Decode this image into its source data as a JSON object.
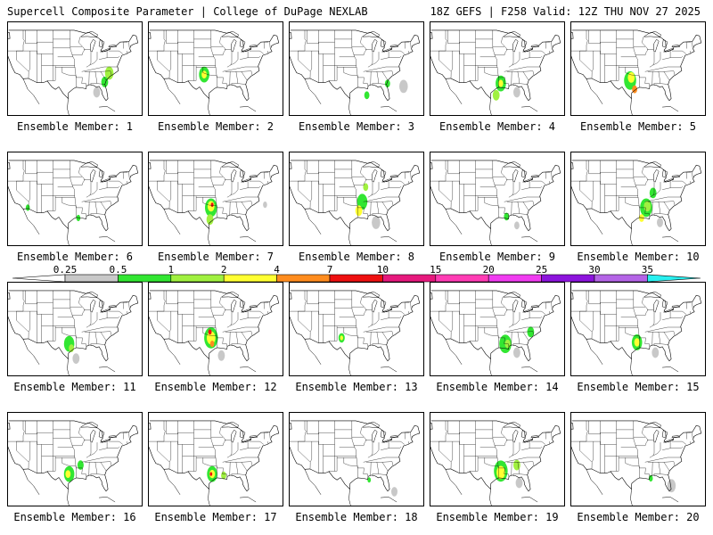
{
  "header": {
    "title": "Supercell Composite Parameter | College of DuPage NEXLAB",
    "run_info": "18Z GEFS | F258 Valid: 12Z THU NOV 27 2025"
  },
  "colorbar": {
    "levels": [
      {
        "label": "0.25",
        "color": "#c8c8c8"
      },
      {
        "label": "0.5",
        "color": "#32e632"
      },
      {
        "label": "1",
        "color": "#a0f040"
      },
      {
        "label": "2",
        "color": "#ffff32"
      },
      {
        "label": "4",
        "color": "#ff8c1e"
      },
      {
        "label": "7",
        "color": "#ee1010"
      },
      {
        "label": "10",
        "color": "#e6197d"
      },
      {
        "label": "15",
        "color": "#ff3cb4"
      },
      {
        "label": "20",
        "color": "#f03cf0"
      },
      {
        "label": "25",
        "color": "#8c14dc"
      },
      {
        "label": "30",
        "color": "#b464e6"
      },
      {
        "label": "35",
        "color": "#28f0f0"
      }
    ],
    "left_arrow_color": "#ffffff",
    "right_arrow_color": "#28f0f0"
  },
  "members": [
    {
      "label": "Ensemble Member: 1",
      "blobs": [
        {
          "lon": -79.5,
          "lat": 34.5,
          "r": 2.5,
          "c": 2
        },
        {
          "lon": -81.5,
          "lat": 31.5,
          "r": 2.0,
          "c": 1
        },
        {
          "lon": -85,
          "lat": 28,
          "r": 2.0,
          "c": 0
        }
      ]
    },
    {
      "label": "Ensemble Member: 2",
      "blobs": [
        {
          "lon": -99.5,
          "lat": 34,
          "r": 3.0,
          "c": 1
        },
        {
          "lon": -99.5,
          "lat": 34,
          "r": 1.5,
          "c": 3
        }
      ]
    },
    {
      "label": "Ensemble Member: 3",
      "blobs": [
        {
          "lon": -81,
          "lat": 31,
          "r": 1.5,
          "c": 1
        },
        {
          "lon": -90,
          "lat": 27,
          "r": 1.5,
          "c": 1
        },
        {
          "lon": -74,
          "lat": 30,
          "r": 2.5,
          "c": 0
        }
      ]
    },
    {
      "label": "Ensemble Member: 4",
      "blobs": [
        {
          "lon": -93,
          "lat": 31,
          "r": 3.0,
          "c": 1
        },
        {
          "lon": -93,
          "lat": 31,
          "r": 1.4,
          "c": 3
        },
        {
          "lon": -95,
          "lat": 27,
          "r": 2.0,
          "c": 2
        },
        {
          "lon": -86,
          "lat": 28,
          "r": 2.0,
          "c": 0
        }
      ]
    },
    {
      "label": "Ensemble Member: 5",
      "blobs": [
        {
          "lon": -98,
          "lat": 32,
          "r": 3.5,
          "c": 1
        },
        {
          "lon": -97.5,
          "lat": 33,
          "r": 2.0,
          "c": 3
        },
        {
          "lon": -96,
          "lat": 29,
          "r": 1.5,
          "c": 4
        }
      ]
    },
    {
      "label": "Ensemble Member: 6",
      "blobs": [
        {
          "lon": -115,
          "lat": 33,
          "r": 1.2,
          "c": 1
        },
        {
          "lon": -93,
          "lat": 29.5,
          "r": 1.2,
          "c": 1
        }
      ]
    },
    {
      "label": "Ensemble Member: 7",
      "blobs": [
        {
          "lon": -96.5,
          "lat": 33,
          "r": 3.5,
          "c": 1
        },
        {
          "lon": -96.5,
          "lat": 33.5,
          "r": 2.0,
          "c": 3
        },
        {
          "lon": -96,
          "lat": 34,
          "r": 0.8,
          "c": 5
        },
        {
          "lon": -97,
          "lat": 29,
          "r": 2.0,
          "c": 2
        },
        {
          "lon": -73,
          "lat": 34,
          "r": 1.2,
          "c": 0
        }
      ]
    },
    {
      "label": "Ensemble Member: 8",
      "blobs": [
        {
          "lon": -92,
          "lat": 35,
          "r": 3.0,
          "c": 1
        },
        {
          "lon": -93.5,
          "lat": 32,
          "r": 2.0,
          "c": 3
        },
        {
          "lon": -90.5,
          "lat": 40,
          "r": 1.5,
          "c": 2
        },
        {
          "lon": -86,
          "lat": 28,
          "r": 2.5,
          "c": 0
        }
      ]
    },
    {
      "label": "Ensemble Member: 9",
      "blobs": [
        {
          "lon": -90.5,
          "lat": 30,
          "r": 1.5,
          "c": 1
        },
        {
          "lon": -86,
          "lat": 27,
          "r": 1.5,
          "c": 0
        }
      ]
    },
    {
      "label": "Ensemble Member: 10",
      "blobs": [
        {
          "lon": -91,
          "lat": 33,
          "r": 3.5,
          "c": 1
        },
        {
          "lon": -90.5,
          "lat": 33.5,
          "r": 2.0,
          "c": 2
        },
        {
          "lon": -93,
          "lat": 29.5,
          "r": 1.5,
          "c": 3
        },
        {
          "lon": -88,
          "lat": 38,
          "r": 2.0,
          "c": 1
        },
        {
          "lon": -85,
          "lat": 28,
          "r": 1.8,
          "c": 0
        }
      ]
    },
    {
      "label": "Ensemble Member: 11",
      "blobs": [
        {
          "lon": -97,
          "lat": 31,
          "r": 3.0,
          "c": 1
        },
        {
          "lon": -96,
          "lat": 29.5,
          "r": 1.5,
          "c": 2
        },
        {
          "lon": -94,
          "lat": 26,
          "r": 2.0,
          "c": 0
        }
      ]
    },
    {
      "label": "Ensemble Member: 12",
      "blobs": [
        {
          "lon": -96.5,
          "lat": 33,
          "r": 4.0,
          "c": 1
        },
        {
          "lon": -96.5,
          "lat": 33,
          "r": 2.5,
          "c": 3
        },
        {
          "lon": -97,
          "lat": 35,
          "r": 1.0,
          "c": 5
        },
        {
          "lon": -96,
          "lat": 31,
          "r": 1.2,
          "c": 4
        },
        {
          "lon": -92,
          "lat": 27,
          "r": 2.0,
          "c": 0
        }
      ]
    },
    {
      "label": "Ensemble Member: 13",
      "blobs": [
        {
          "lon": -101,
          "lat": 33,
          "r": 1.8,
          "c": 1
        },
        {
          "lon": -101,
          "lat": 33,
          "r": 0.9,
          "c": 3
        }
      ]
    },
    {
      "label": "Ensemble Member: 14",
      "blobs": [
        {
          "lon": -91,
          "lat": 31,
          "r": 3.5,
          "c": 1
        },
        {
          "lon": -90,
          "lat": 31,
          "r": 1.6,
          "c": 2
        },
        {
          "lon": -80,
          "lat": 35,
          "r": 2.0,
          "c": 1
        },
        {
          "lon": -86,
          "lat": 28,
          "r": 2.0,
          "c": 0
        }
      ]
    },
    {
      "label": "Ensemble Member: 15",
      "blobs": [
        {
          "lon": -95,
          "lat": 31.5,
          "r": 3.0,
          "c": 1
        },
        {
          "lon": -95,
          "lat": 31.5,
          "r": 1.6,
          "c": 3
        },
        {
          "lon": -87,
          "lat": 28,
          "r": 2.0,
          "c": 0
        }
      ]
    },
    {
      "label": "Ensemble Member: 16",
      "blobs": [
        {
          "lon": -97,
          "lat": 31,
          "r": 3.0,
          "c": 1
        },
        {
          "lon": -97.5,
          "lat": 31,
          "r": 1.5,
          "c": 3
        },
        {
          "lon": -92,
          "lat": 34,
          "r": 1.8,
          "c": 1
        }
      ]
    },
    {
      "label": "Ensemble Member: 17",
      "blobs": [
        {
          "lon": -96,
          "lat": 31,
          "r": 3.0,
          "c": 1
        },
        {
          "lon": -96,
          "lat": 31,
          "r": 1.6,
          "c": 3
        },
        {
          "lon": -96.5,
          "lat": 31,
          "r": 0.7,
          "c": 5
        },
        {
          "lon": -91,
          "lat": 30.5,
          "r": 1.5,
          "c": 2
        }
      ]
    },
    {
      "label": "Ensemble Member: 18",
      "blobs": [
        {
          "lon": -89,
          "lat": 29,
          "r": 1.0,
          "c": 1
        },
        {
          "lon": -78,
          "lat": 25,
          "r": 1.8,
          "c": 0
        }
      ]
    },
    {
      "label": "Ensemble Member: 19",
      "blobs": [
        {
          "lon": -93,
          "lat": 32,
          "r": 4.0,
          "c": 1
        },
        {
          "lon": -93,
          "lat": 31.5,
          "r": 2.5,
          "c": 3
        },
        {
          "lon": -86,
          "lat": 34,
          "r": 2.0,
          "c": 2
        },
        {
          "lon": -85,
          "lat": 28,
          "r": 2.0,
          "c": 0
        }
      ]
    },
    {
      "label": "Ensemble Member: 20",
      "blobs": [
        {
          "lon": -89,
          "lat": 29.5,
          "r": 1.2,
          "c": 1
        },
        {
          "lon": -80,
          "lat": 27,
          "r": 2.5,
          "c": 0
        }
      ]
    }
  ]
}
